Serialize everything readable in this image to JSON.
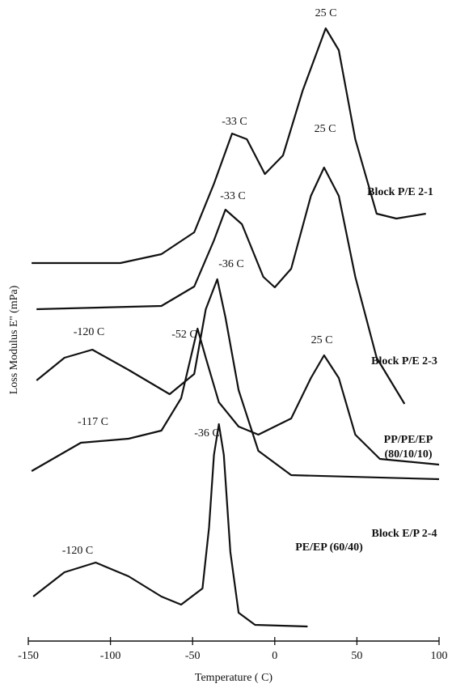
{
  "chart_data": {
    "type": "line",
    "x_label": "Temperature ( C)",
    "y_label": "Loss Modulus  E'' (mPa)",
    "xlim": [
      -150,
      100
    ],
    "xticks": [
      -150,
      -100,
      -50,
      0,
      50,
      100
    ],
    "ylim": [
      0,
      780
    ],
    "series": [
      {
        "name": "Block P/E 2-1",
        "color": "#111111",
        "peak_labels": [
          "25 C",
          "-33 C"
        ],
        "x": [
          -148,
          -94,
          -69,
          -49,
          -37,
          -26,
          -17,
          -6,
          5,
          17,
          31,
          39,
          49,
          62,
          74,
          92
        ],
        "values": [
          467,
          467,
          478,
          505,
          565,
          627,
          620,
          577,
          600,
          680,
          757,
          730,
          620,
          528,
          522,
          528
        ]
      },
      {
        "name": "Block P/E 2-3",
        "color": "#111111",
        "peak_labels": [
          "25 C",
          "-33 C"
        ],
        "x": [
          -145,
          -69,
          -49,
          -37,
          -30,
          -20,
          -7,
          0,
          10,
          22,
          30,
          39,
          49,
          62,
          79
        ],
        "values": [
          410,
          414,
          438,
          495,
          533,
          515,
          450,
          437,
          460,
          550,
          585,
          550,
          450,
          350,
          293
        ]
      },
      {
        "name": "PP/PE/EP (80/10/10)",
        "color": "#111111",
        "peak_labels": [
          "-117 C",
          "-52 C",
          "25 C"
        ],
        "x": [
          -148,
          -118,
          -89,
          -69,
          -57,
          -50,
          -47,
          -42,
          -34,
          -22,
          -10,
          10,
          22,
          30,
          39,
          49,
          64,
          100
        ],
        "values": [
          210,
          245,
          250,
          260,
          300,
          360,
          386,
          350,
          295,
          265,
          255,
          275,
          325,
          353,
          325,
          255,
          225,
          218
        ]
      },
      {
        "name": "Block E/P 2-4",
        "color": "#111111",
        "peak_labels": [
          "-120 C",
          "-36 C"
        ],
        "x": [
          -145,
          -128,
          -111,
          -89,
          -64,
          -49,
          -42,
          -35,
          -30,
          -22,
          -10,
          10,
          100
        ],
        "values": [
          322,
          350,
          360,
          335,
          305,
          330,
          410,
          447,
          400,
          310,
          235,
          205,
          200
        ]
      },
      {
        "name": "PE/EP (60/40)",
        "color": "#111111",
        "peak_labels": [
          "-120 C",
          "-36 C"
        ],
        "x": [
          -147,
          -128,
          -109,
          -89,
          -69,
          -57,
          -44,
          -40,
          -37,
          -34,
          -31,
          -27,
          -22,
          -12,
          20
        ],
        "values": [
          55,
          85,
          97,
          80,
          55,
          45,
          65,
          140,
          230,
          268,
          230,
          110,
          35,
          20,
          18
        ]
      }
    ]
  }
}
